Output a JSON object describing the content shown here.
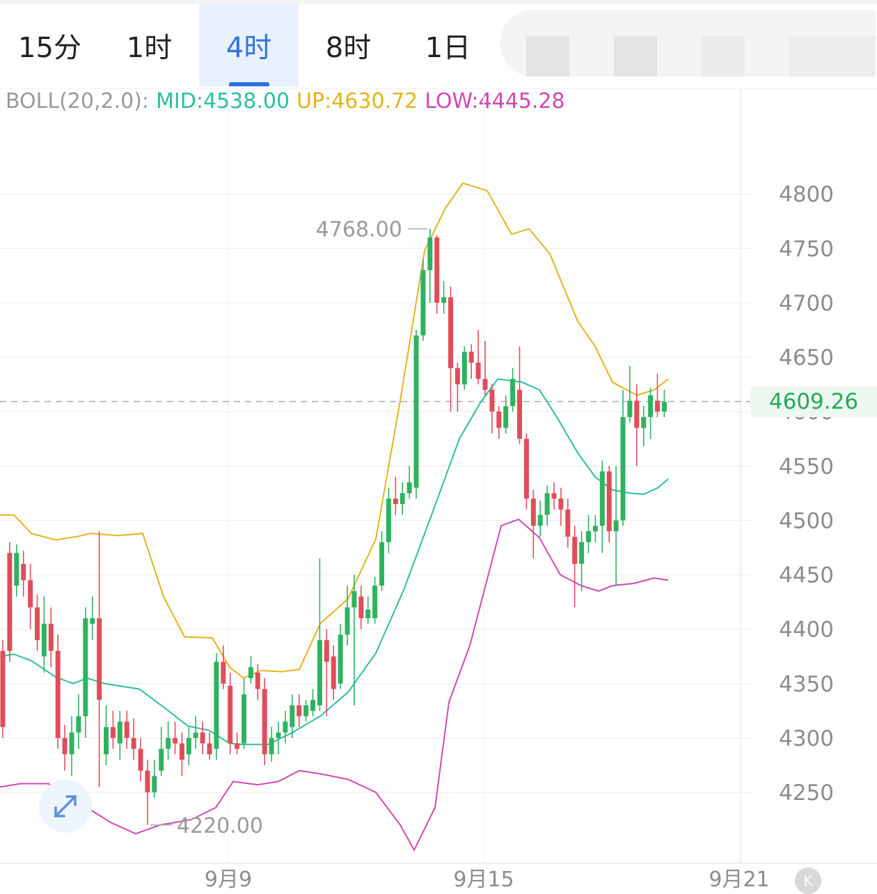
{
  "tabs": [
    {
      "label": "15分",
      "active": false
    },
    {
      "label": "1时",
      "active": false
    },
    {
      "label": "4时",
      "active": true
    },
    {
      "label": "8时",
      "active": false
    },
    {
      "label": "1日",
      "active": false
    }
  ],
  "legend": {
    "label": "BOLL(20,2.0):",
    "mid": "MID:4538.00",
    "up": "UP:4630.72",
    "low": "LOW:4445.28"
  },
  "current_price": "4609.26",
  "max_label": "4768.00",
  "min_label": "4220.00",
  "colors": {
    "up_candle": "#2fb25f",
    "down_candle": "#e04d5a",
    "mid": "#2bbf9b",
    "upper": "#e5b31d",
    "lower": "#d247b1",
    "accent": "#2f73e0"
  },
  "icons": {
    "expand": "expand-arrows-icon",
    "k": "k-line-icon"
  },
  "chart_data": {
    "type": "candlestick",
    "y_ticks": [
      4800,
      4750,
      4700,
      4650,
      4600,
      4550,
      4500,
      4450,
      4400,
      4350,
      4300,
      4250
    ],
    "x_ticks": [
      "9月9",
      "9月15",
      "9月21"
    ],
    "ylim": [
      4215,
      4810
    ],
    "current": 4609.26,
    "max": 4768.0,
    "min": 4220.0,
    "candles": [
      [
        4380,
        4310,
        4390,
        4300
      ],
      [
        4470,
        4380,
        4480,
        4370
      ],
      [
        4440,
        4470,
        4478,
        4430
      ],
      [
        4460,
        4445,
        4472,
        4430
      ],
      [
        4445,
        4420,
        4460,
        4400
      ],
      [
        4420,
        4390,
        4432,
        4380
      ],
      [
        4375,
        4405,
        4430,
        4360
      ],
      [
        4405,
        4380,
        4420,
        4365
      ],
      [
        4380,
        4300,
        4395,
        4290
      ],
      [
        4300,
        4285,
        4312,
        4270
      ],
      [
        4285,
        4305,
        4320,
        4265
      ],
      [
        4305,
        4320,
        4340,
        4290
      ],
      [
        4320,
        4410,
        4420,
        4300
      ],
      [
        4405,
        4410,
        4430,
        4390
      ],
      [
        4410,
        4335,
        4490,
        4255
      ],
      [
        4285,
        4310,
        4330,
        4275
      ],
      [
        4310,
        4300,
        4325,
        4290
      ],
      [
        4295,
        4315,
        4325,
        4280
      ],
      [
        4315,
        4300,
        4325,
        4290
      ],
      [
        4300,
        4290,
        4318,
        4280
      ],
      [
        4290,
        4270,
        4300,
        4260
      ],
      [
        4270,
        4250,
        4280,
        4220
      ],
      [
        4250,
        4265,
        4280,
        4245
      ],
      [
        4270,
        4290,
        4310,
        4265
      ],
      [
        4290,
        4300,
        4315,
        4280
      ],
      [
        4300,
        4295,
        4315,
        4285
      ],
      [
        4295,
        4280,
        4305,
        4265
      ],
      [
        4285,
        4300,
        4310,
        4275
      ],
      [
        4300,
        4305,
        4320,
        4290
      ],
      [
        4305,
        4295,
        4315,
        4285
      ],
      [
        4295,
        4285,
        4305,
        4280
      ],
      [
        4290,
        4370,
        4378,
        4280
      ],
      [
        4370,
        4350,
        4385,
        4345
      ],
      [
        4348,
        4295,
        4360,
        4285
      ],
      [
        4295,
        4290,
        4305,
        4285
      ],
      [
        4295,
        4340,
        4355,
        4290
      ],
      [
        4355,
        4365,
        4375,
        4350
      ],
      [
        4360,
        4345,
        4368,
        4335
      ],
      [
        4345,
        4285,
        4355,
        4275
      ],
      [
        4285,
        4300,
        4310,
        4278
      ],
      [
        4300,
        4305,
        4315,
        4285
      ],
      [
        4305,
        4315,
        4325,
        4295
      ],
      [
        4310,
        4330,
        4340,
        4300
      ],
      [
        4330,
        4320,
        4340,
        4310
      ],
      [
        4320,
        4330,
        4335,
        4315
      ],
      [
        4325,
        4335,
        4345,
        4320
      ],
      [
        4330,
        4390,
        4465,
        4325
      ],
      [
        4390,
        4370,
        4400,
        4320
      ],
      [
        4375,
        4345,
        4385,
        4335
      ],
      [
        4350,
        4395,
        4405,
        4345
      ],
      [
        4395,
        4420,
        4440,
        4385
      ],
      [
        4420,
        4435,
        4450,
        4330
      ],
      [
        4430,
        4410,
        4440,
        4400
      ],
      [
        4410,
        4418,
        4430,
        4405
      ],
      [
        4410,
        4440,
        4448,
        4405
      ],
      [
        4440,
        4480,
        4490,
        4435
      ],
      [
        4480,
        4520,
        4530,
        4470
      ],
      [
        4520,
        4515,
        4540,
        4505
      ],
      [
        4515,
        4525,
        4535,
        4505
      ],
      [
        4525,
        4535,
        4550,
        4520
      ],
      [
        4530,
        4670,
        4675,
        4520
      ],
      [
        4670,
        4730,
        4740,
        4665
      ],
      [
        4730,
        4760,
        4768,
        4700
      ],
      [
        4760,
        4700,
        4762,
        4690
      ],
      [
        4700,
        4705,
        4720,
        4690
      ],
      [
        4705,
        4640,
        4715,
        4600
      ],
      [
        4640,
        4625,
        4645,
        4600
      ],
      [
        4625,
        4655,
        4660,
        4620
      ],
      [
        4655,
        4645,
        4662,
        4630
      ],
      [
        4645,
        4630,
        4675,
        4625
      ],
      [
        4630,
        4620,
        4665,
        4615
      ],
      [
        4620,
        4600,
        4625,
        4580
      ],
      [
        4600,
        4585,
        4605,
        4575
      ],
      [
        4585,
        4605,
        4615,
        4580
      ],
      [
        4605,
        4630,
        4640,
        4600
      ],
      [
        4620,
        4575,
        4660,
        4570
      ],
      [
        4575,
        4520,
        4580,
        4510
      ],
      [
        4520,
        4495,
        4528,
        4465
      ],
      [
        4495,
        4505,
        4518,
        4485
      ],
      [
        4505,
        4525,
        4532,
        4495
      ],
      [
        4525,
        4520,
        4535,
        4510
      ],
      [
        4520,
        4510,
        4530,
        4495
      ],
      [
        4510,
        4485,
        4520,
        4475
      ],
      [
        4485,
        4460,
        4495,
        4420
      ],
      [
        4460,
        4480,
        4490,
        4435
      ],
      [
        4480,
        4490,
        4505,
        4470
      ],
      [
        4490,
        4495,
        4505,
        4480
      ],
      [
        4495,
        4545,
        4555,
        4470
      ],
      [
        4545,
        4490,
        4550,
        4480
      ],
      [
        4490,
        4500,
        4550,
        4440
      ],
      [
        4500,
        4595,
        4620,
        4495
      ],
      [
        4595,
        4610,
        4642,
        4590
      ],
      [
        4610,
        4585,
        4625,
        4550
      ],
      [
        4585,
        4595,
        4605,
        4568
      ],
      [
        4595,
        4615,
        4622,
        4575
      ],
      [
        4610,
        4600,
        4635,
        4595
      ],
      [
        4600,
        4609,
        4620,
        4595
      ]
    ],
    "mid_line": [
      [
        0,
        4375
      ],
      [
        20,
        4377
      ],
      [
        45,
        4371
      ],
      [
        80,
        4356
      ],
      [
        105,
        4350
      ],
      [
        125,
        4355
      ],
      [
        150,
        4350
      ],
      [
        200,
        4345
      ],
      [
        240,
        4326
      ],
      [
        270,
        4311
      ],
      [
        300,
        4307
      ],
      [
        330,
        4295
      ],
      [
        350,
        4294
      ],
      [
        385,
        4294
      ],
      [
        420,
        4305
      ],
      [
        460,
        4320
      ],
      [
        500,
        4342
      ],
      [
        540,
        4378
      ],
      [
        580,
        4436
      ],
      [
        620,
        4505
      ],
      [
        660,
        4575
      ],
      [
        690,
        4608
      ],
      [
        715,
        4630
      ],
      [
        750,
        4627
      ],
      [
        775,
        4620
      ],
      [
        800,
        4595
      ],
      [
        830,
        4562
      ],
      [
        855,
        4540
      ],
      [
        880,
        4528
      ],
      [
        905,
        4525
      ],
      [
        925,
        4524
      ],
      [
        945,
        4530
      ],
      [
        960,
        4538
      ]
    ],
    "up_line": [
      [
        0,
        4505
      ],
      [
        20,
        4505
      ],
      [
        45,
        4488
      ],
      [
        80,
        4482
      ],
      [
        110,
        4485
      ],
      [
        130,
        4488
      ],
      [
        170,
        4486
      ],
      [
        205,
        4488
      ],
      [
        235,
        4430
      ],
      [
        265,
        4393
      ],
      [
        305,
        4392
      ],
      [
        330,
        4365
      ],
      [
        350,
        4355
      ],
      [
        375,
        4362
      ],
      [
        405,
        4361
      ],
      [
        430,
        4363
      ],
      [
        460,
        4405
      ],
      [
        500,
        4428
      ],
      [
        540,
        4483
      ],
      [
        575,
        4610
      ],
      [
        610,
        4748
      ],
      [
        640,
        4787
      ],
      [
        665,
        4810
      ],
      [
        700,
        4803
      ],
      [
        735,
        4763
      ],
      [
        760,
        4768
      ],
      [
        790,
        4745
      ],
      [
        830,
        4683
      ],
      [
        855,
        4660
      ],
      [
        880,
        4627
      ],
      [
        915,
        4615
      ],
      [
        940,
        4620
      ],
      [
        960,
        4630
      ]
    ],
    "low_line": [
      [
        0,
        4255
      ],
      [
        30,
        4258
      ],
      [
        70,
        4258
      ],
      [
        100,
        4233
      ],
      [
        130,
        4234
      ],
      [
        160,
        4222
      ],
      [
        195,
        4212
      ],
      [
        230,
        4220
      ],
      [
        275,
        4225
      ],
      [
        310,
        4236
      ],
      [
        335,
        4260
      ],
      [
        370,
        4257
      ],
      [
        400,
        4260
      ],
      [
        430,
        4270
      ],
      [
        460,
        4267
      ],
      [
        500,
        4262
      ],
      [
        540,
        4250
      ],
      [
        575,
        4220
      ],
      [
        595,
        4197
      ],
      [
        625,
        4236
      ],
      [
        645,
        4333
      ],
      [
        675,
        4385
      ],
      [
        720,
        4495
      ],
      [
        745,
        4501
      ],
      [
        775,
        4484
      ],
      [
        805,
        4450
      ],
      [
        835,
        4440
      ],
      [
        860,
        4435
      ],
      [
        880,
        4440
      ],
      [
        910,
        4442
      ],
      [
        940,
        4447
      ],
      [
        960,
        4445
      ]
    ]
  }
}
